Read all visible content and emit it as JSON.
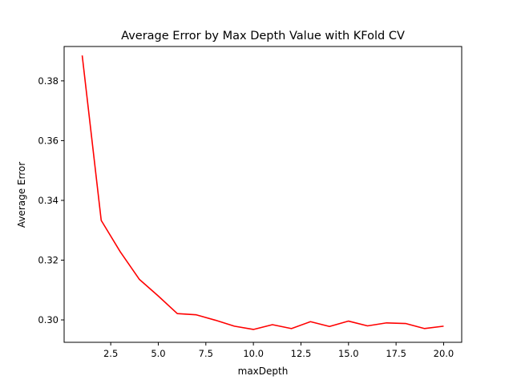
{
  "chart_data": {
    "type": "line",
    "title": "Average Error by Max Depth Value with KFold CV",
    "xlabel": "maxDepth",
    "ylabel": "Average Error",
    "xlim": [
      0.05,
      20.95
    ],
    "ylim": [
      0.2925,
      0.3915
    ],
    "x_ticks": [
      2.5,
      5.0,
      7.5,
      10.0,
      12.5,
      15.0,
      17.5,
      20.0
    ],
    "x_tick_labels": [
      "2.5",
      "5.0",
      "7.5",
      "10.0",
      "12.5",
      "15.0",
      "17.5",
      "20.0"
    ],
    "y_ticks": [
      0.3,
      0.32,
      0.34,
      0.36,
      0.38
    ],
    "y_tick_labels": [
      "0.30",
      "0.32",
      "0.34",
      "0.36",
      "0.38"
    ],
    "grid": false,
    "line_color": "#ff0000",
    "series": [
      {
        "x": [
          1,
          2,
          3,
          4,
          5,
          6,
          7,
          8,
          9,
          10,
          11,
          12,
          13,
          14,
          15,
          16,
          17,
          18,
          19,
          20
        ],
        "y": [
          0.3885,
          0.3333,
          0.3228,
          0.3136,
          0.308,
          0.3021,
          0.3017,
          0.2999,
          0.2979,
          0.2968,
          0.2984,
          0.2971,
          0.2994,
          0.2978,
          0.2996,
          0.298,
          0.299,
          0.2988,
          0.2971,
          0.2979
        ]
      }
    ]
  }
}
